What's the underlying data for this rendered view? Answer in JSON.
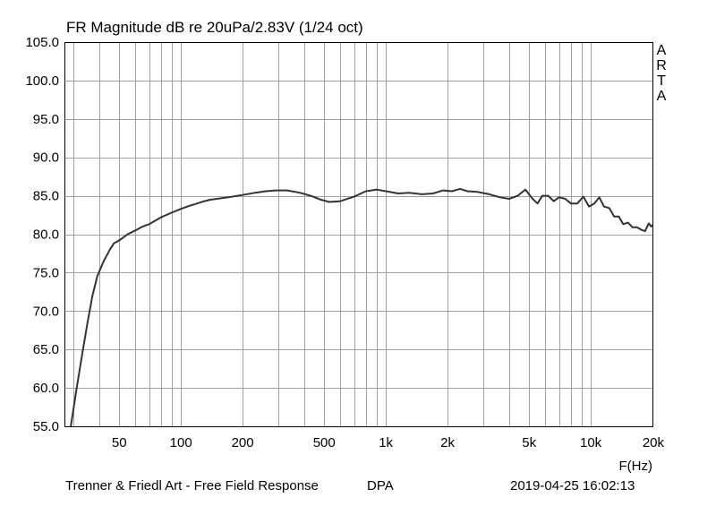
{
  "chart_data": {
    "type": "line",
    "title": "FR Magnitude dB re 20uPa/2.83V (1/24 oct)",
    "xlabel": "F(Hz)",
    "ylabel": "",
    "x_scale": "log",
    "xlim": [
      27,
      20000
    ],
    "ylim": [
      55,
      105
    ],
    "grid": true,
    "x_ticks": [
      {
        "value": 50,
        "label": "50"
      },
      {
        "value": 100,
        "label": "100"
      },
      {
        "value": 200,
        "label": "200"
      },
      {
        "value": 500,
        "label": "500"
      },
      {
        "value": 1000,
        "label": "1k"
      },
      {
        "value": 2000,
        "label": "2k"
      },
      {
        "value": 5000,
        "label": "5k"
      },
      {
        "value": 10000,
        "label": "10k"
      },
      {
        "value": 20000,
        "label": "20k"
      }
    ],
    "y_ticks": [
      "55.0",
      "60.0",
      "65.0",
      "70.0",
      "75.0",
      "80.0",
      "85.0",
      "90.0",
      "95.0",
      "100.0",
      "105.0"
    ],
    "series": [
      {
        "color": "#333333",
        "points": [
          [
            29,
            55.0
          ],
          [
            31,
            60.0
          ],
          [
            33,
            64.5
          ],
          [
            35,
            68.5
          ],
          [
            37,
            72.0
          ],
          [
            39,
            74.5
          ],
          [
            42,
            76.5
          ],
          [
            45,
            78.0
          ],
          [
            47,
            78.8
          ],
          [
            50,
            79.2
          ],
          [
            55,
            80.0
          ],
          [
            60,
            80.5
          ],
          [
            65,
            81.0
          ],
          [
            70,
            81.3
          ],
          [
            80,
            82.2
          ],
          [
            90,
            82.8
          ],
          [
            100,
            83.3
          ],
          [
            110,
            83.7
          ],
          [
            120,
            84.0
          ],
          [
            130,
            84.3
          ],
          [
            140,
            84.5
          ],
          [
            150,
            84.6
          ],
          [
            170,
            84.8
          ],
          [
            200,
            85.1
          ],
          [
            230,
            85.4
          ],
          [
            260,
            85.6
          ],
          [
            290,
            85.7
          ],
          [
            330,
            85.7
          ],
          [
            380,
            85.4
          ],
          [
            430,
            85.0
          ],
          [
            480,
            84.5
          ],
          [
            530,
            84.2
          ],
          [
            600,
            84.3
          ],
          [
            700,
            84.9
          ],
          [
            800,
            85.6
          ],
          [
            900,
            85.8
          ],
          [
            1000,
            85.6
          ],
          [
            1150,
            85.3
          ],
          [
            1300,
            85.4
          ],
          [
            1500,
            85.2
          ],
          [
            1700,
            85.3
          ],
          [
            1900,
            85.7
          ],
          [
            2100,
            85.6
          ],
          [
            2300,
            85.9
          ],
          [
            2500,
            85.6
          ],
          [
            2800,
            85.5
          ],
          [
            3200,
            85.2
          ],
          [
            3600,
            84.8
          ],
          [
            4000,
            84.6
          ],
          [
            4400,
            85.0
          ],
          [
            4800,
            85.8
          ],
          [
            5200,
            84.6
          ],
          [
            5500,
            84.0
          ],
          [
            5800,
            85.0
          ],
          [
            6200,
            85.0
          ],
          [
            6600,
            84.3
          ],
          [
            7000,
            84.8
          ],
          [
            7500,
            84.6
          ],
          [
            8000,
            84.0
          ],
          [
            8600,
            84.0
          ],
          [
            9200,
            84.9
          ],
          [
            9800,
            83.6
          ],
          [
            10400,
            84.0
          ],
          [
            11000,
            84.8
          ],
          [
            11600,
            83.6
          ],
          [
            12300,
            83.4
          ],
          [
            13000,
            82.3
          ],
          [
            13700,
            82.3
          ],
          [
            14400,
            81.3
          ],
          [
            15200,
            81.5
          ],
          [
            16000,
            80.9
          ],
          [
            16800,
            80.9
          ],
          [
            17600,
            80.6
          ],
          [
            18400,
            80.4
          ],
          [
            19200,
            81.4
          ],
          [
            19700,
            81.0
          ],
          [
            20000,
            81.2
          ]
        ]
      }
    ]
  },
  "watermark": [
    "A",
    "R",
    "T",
    "A"
  ],
  "footer": {
    "left": "Trenner & Friedl Art - Free Field Response",
    "device": "DPA",
    "timestamp": "2019-04-25   16:02:13"
  }
}
